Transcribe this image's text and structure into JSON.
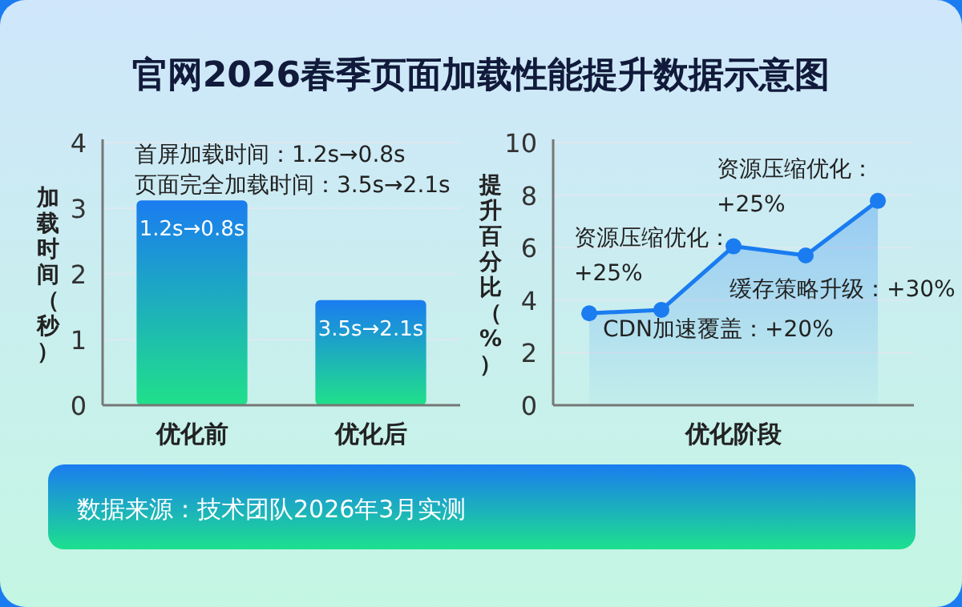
{
  "chart_data": [
    {
      "type": "bar",
      "title": "官网2026春季页面加载性能提升数据示意图",
      "ylabel": "加载时间（秒）",
      "categories": [
        "优化前",
        "优化后"
      ],
      "values": [
        3.12,
        1.6
      ],
      "color": "#1a7cf0",
      "ylim": [
        0,
        4
      ],
      "yticks": [
        0,
        1,
        2,
        3,
        4
      ],
      "grid": "y",
      "annotations": [
        "首屏加载时间：1.2s→0.8s",
        "页面完全加载时间：3.5s→2.1s",
        {
          "text": "1.2s→0.8s",
          "x": "优化前",
          "y": 3.12
        },
        {
          "text": "3.5s→2.1s",
          "x": "优化后",
          "y": 1.6
        }
      ]
    },
    {
      "type": "area",
      "xlabel": "优化阶段",
      "ylabel": "提升百分比（%）",
      "categories": [
        null,
        null,
        null,
        null,
        null
      ],
      "values": [
        3.5,
        3.63,
        6.05,
        5.7,
        7.78
      ],
      "color": "#1a7cf0",
      "marker": "circle",
      "ylim": [
        0,
        10
      ],
      "yticks": [
        0,
        2,
        4,
        6,
        8,
        10
      ],
      "grid": "y",
      "annotations": [
        "资源压缩优化：+25%",
        "资源压缩优化：+25%",
        "缓存策略升级：+30%",
        "CDN加速覆盖：+20%",
        "数据来源：技术团队2026年3月实测"
      ]
    }
  ]
}
